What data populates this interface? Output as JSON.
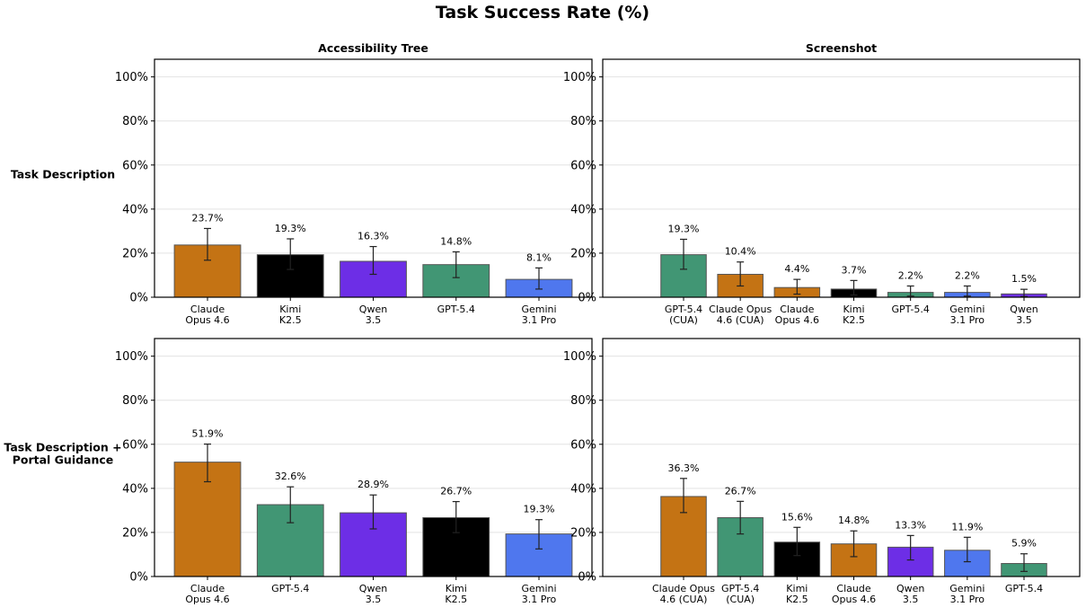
{
  "title": "Task Success Rate (%)",
  "colors": {
    "claude": "#c47314",
    "kimi": "#000000",
    "qwen": "#6d2ee6",
    "gpt": "#419674",
    "gemini": "#4f77ee"
  },
  "chart_data": [
    {
      "type": "bar",
      "title": "Accessibility Tree",
      "row_label": [
        "Task Description"
      ],
      "ylim": [
        0,
        108
      ],
      "yticks": [
        "0%",
        "20%",
        "40%",
        "60%",
        "80%",
        "100%"
      ],
      "grid": true,
      "categories": [
        [
          "Claude",
          "Opus 4.6"
        ],
        [
          "Kimi",
          "K2.5"
        ],
        [
          "Qwen",
          "3.5"
        ],
        [
          "GPT-5.4"
        ],
        [
          "Gemini",
          "3.1 Pro"
        ]
      ],
      "values": [
        23.7,
        19.3,
        16.3,
        14.8,
        8.1
      ],
      "labels": [
        "23.7%",
        "19.3%",
        "16.3%",
        "14.8%",
        "8.1%"
      ],
      "error_low": [
        16.8,
        12.6,
        10.4,
        8.9,
        3.7
      ],
      "error_high": [
        31.2,
        26.5,
        23.0,
        20.6,
        13.3
      ],
      "color_keys": [
        "claude",
        "kimi",
        "qwen",
        "gpt",
        "gemini"
      ]
    },
    {
      "type": "bar",
      "title": "Screenshot",
      "ylim": [
        0,
        108
      ],
      "yticks": [
        "0%",
        "20%",
        "40%",
        "60%",
        "80%",
        "100%"
      ],
      "grid": true,
      "categories": [
        [
          "GPT-5.4",
          "(CUA)"
        ],
        [
          "Claude Opus",
          "4.6 (CUA)"
        ],
        [
          "Claude",
          "Opus 4.6"
        ],
        [
          "Kimi",
          "K2.5"
        ],
        [
          "GPT-5.4"
        ],
        [
          "Gemini",
          "3.1 Pro"
        ],
        [
          "Qwen",
          "3.5"
        ]
      ],
      "values": [
        19.3,
        10.4,
        4.4,
        3.7,
        2.2,
        2.2,
        1.5
      ],
      "labels": [
        "19.3%",
        "10.4%",
        "4.4%",
        "3.7%",
        "2.2%",
        "2.2%",
        "1.5%"
      ],
      "error_low": [
        12.7,
        5.1,
        1.4,
        1.0,
        0.5,
        0.5,
        0.3
      ],
      "error_high": [
        26.3,
        16.0,
        8.1,
        7.6,
        5.1,
        5.1,
        3.6
      ],
      "color_keys": [
        "gpt",
        "claude",
        "claude",
        "kimi",
        "gpt",
        "gemini",
        "qwen"
      ]
    },
    {
      "type": "bar",
      "title": "",
      "row_label": [
        "Task Description +",
        "Portal Guidance"
      ],
      "ylim": [
        0,
        108
      ],
      "yticks": [
        "0%",
        "20%",
        "40%",
        "60%",
        "80%",
        "100%"
      ],
      "grid": true,
      "categories": [
        [
          "Claude",
          "Opus 4.6"
        ],
        [
          "GPT-5.4"
        ],
        [
          "Qwen",
          "3.5"
        ],
        [
          "Kimi",
          "K2.5"
        ],
        [
          "Gemini",
          "3.1 Pro"
        ]
      ],
      "values": [
        51.9,
        32.6,
        28.9,
        26.7,
        19.3
      ],
      "labels": [
        "51.9%",
        "32.6%",
        "28.9%",
        "26.7%",
        "19.3%"
      ],
      "error_low": [
        43.0,
        24.4,
        21.6,
        19.9,
        12.5
      ],
      "error_high": [
        60.1,
        40.7,
        37.0,
        34.0,
        25.8
      ],
      "color_keys": [
        "claude",
        "gpt",
        "qwen",
        "kimi",
        "gemini"
      ]
    },
    {
      "type": "bar",
      "title": "",
      "ylim": [
        0,
        108
      ],
      "yticks": [
        "0%",
        "20%",
        "40%",
        "60%",
        "80%",
        "100%"
      ],
      "grid": true,
      "categories": [
        [
          "Claude Opus",
          "4.6 (CUA)"
        ],
        [
          "GPT-5.4",
          "(CUA)"
        ],
        [
          "Kimi",
          "K2.5"
        ],
        [
          "Claude",
          "Opus 4.6"
        ],
        [
          "Qwen",
          "3.5"
        ],
        [
          "Gemini",
          "3.1 Pro"
        ],
        [
          "GPT-5.4"
        ]
      ],
      "values": [
        36.3,
        26.7,
        15.6,
        14.8,
        13.3,
        11.9,
        5.9
      ],
      "labels": [
        "36.3%",
        "26.7%",
        "15.6%",
        "14.8%",
        "13.3%",
        "11.9%",
        "5.9%"
      ],
      "error_low": [
        29.0,
        19.3,
        9.5,
        9.0,
        7.5,
        6.7,
        2.3
      ],
      "error_high": [
        44.5,
        34.1,
        22.3,
        20.7,
        18.6,
        17.8,
        10.3
      ],
      "color_keys": [
        "claude",
        "gpt",
        "kimi",
        "claude",
        "qwen",
        "gemini",
        "gpt"
      ]
    }
  ]
}
